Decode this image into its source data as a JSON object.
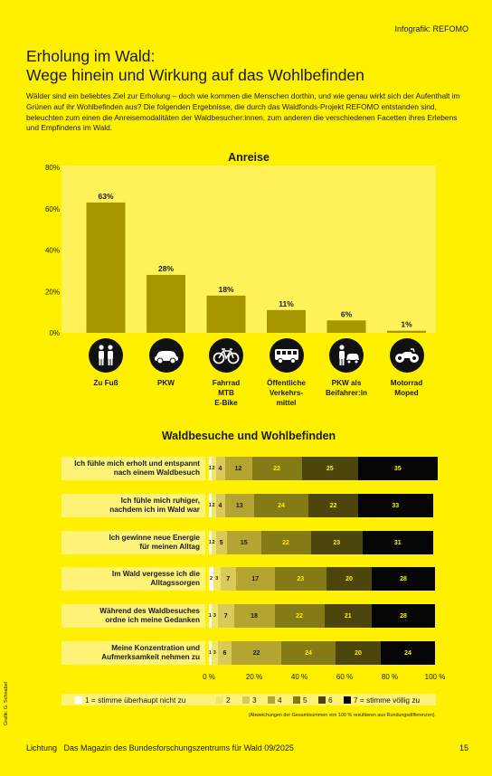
{
  "header": {
    "credit": "Infografik: REFOMO"
  },
  "title_line1": "Erholung im Wald:",
  "title_line2": "Wege hinein und Wirkung auf das Wohlbefinden",
  "intro": "Wälder sind ein beliebtes Ziel zur Erholung – doch wie kommen die Menschen dorthin, und wie genau wirkt sich der Aufenthalt im Grünen auf ihr Wohlbefinden aus? Die folgenden Ergebnisse, die durch das Waldfonds-Projekt REFOMO entstanden sind, beleuchten zum einen die Anreisemodalitäten der Waldbesucher:innen, zum anderen die verschiedenen Facetten ihres Erlebens und Empfindens im Wald.",
  "chart_data": [
    {
      "type": "bar",
      "title": "Anreise",
      "categories": [
        "Zu Fuß",
        "PKW",
        "Fahrrad MTB E-Bike",
        "Öffentliche Verkehrs-mittel",
        "PKW als Beifahrer:in",
        "Motorrad Moped"
      ],
      "category_lines": [
        [
          "Zu Fuß"
        ],
        [
          "PKW"
        ],
        [
          "Fahrrad",
          "MTB",
          "E-Bike"
        ],
        [
          "Öffentliche",
          "Verkehrs-",
          "mittel"
        ],
        [
          "PKW als",
          "Beifahrer:in"
        ],
        [
          "Motorrad",
          "Moped"
        ]
      ],
      "icons": [
        "walking-people-icon",
        "car-icon",
        "bicycle-icon",
        "bus-icon",
        "passenger-car-icon",
        "motorcycle-icon"
      ],
      "values": [
        63,
        28,
        18,
        11,
        6,
        1
      ],
      "value_labels": [
        "63%",
        "28%",
        "18%",
        "11%",
        "6%",
        "1%"
      ],
      "ylim": [
        0,
        80
      ],
      "yticks": [
        0,
        20,
        40,
        60,
        80
      ],
      "ytick_labels": [
        "0%",
        "20%",
        "40%",
        "60%",
        "80%"
      ],
      "bar_color": "#A89600",
      "grid": false
    },
    {
      "type": "bar",
      "orientation": "horizontal-stacked-100",
      "title": "Waldbesuche und Wohlbefinden",
      "categories": [
        "Ich fühle mich erholt und entspannt nach einem Waldbesuch",
        "Ich fühle mich ruhiger, nachdem ich im Wald war",
        "Ich gewinne neue Energie für meinen Alltag",
        "Im Wald vergesse ich die Alltagssorgen",
        "Während des Waldbesuches ordne ich meine Gedanken",
        "Meine Konzentration und Aufmerksamkeit nehmen zu"
      ],
      "category_lines": [
        [
          "Ich fühle mich erholt und entspannt",
          "nach einem Waldbesuch"
        ],
        [
          "Ich fühle mich ruhiger,",
          "nachdem ich im Wald war"
        ],
        [
          "Ich gewinne neue Energie",
          "für meinen Alltag"
        ],
        [
          "Im Wald vergesse ich die",
          "Alltagssorgen"
        ],
        [
          "Während des Waldbesuches",
          "ordne ich meine Gedanken"
        ],
        [
          "Meine Konzentration und",
          "Aufmerksamkeit nehmen zu"
        ]
      ],
      "series": [
        {
          "name": "1 = stimme überhaupt nicht zu",
          "color": "#FFFFFF",
          "values": [
            1,
            1,
            1,
            2,
            1,
            1
          ]
        },
        {
          "name": "2",
          "color": "#F2E56E",
          "values": [
            2,
            2,
            2,
            3,
            3,
            3
          ]
        },
        {
          "name": "3",
          "color": "#D9CA5A",
          "values": [
            4,
            4,
            5,
            7,
            7,
            6
          ]
        },
        {
          "name": "4",
          "color": "#B4A532",
          "values": [
            12,
            13,
            15,
            17,
            18,
            22
          ]
        },
        {
          "name": "5",
          "color": "#847A16",
          "values": [
            22,
            24,
            22,
            23,
            22,
            24
          ]
        },
        {
          "name": "6",
          "color": "#4C460C",
          "values": [
            25,
            22,
            23,
            20,
            21,
            20
          ]
        },
        {
          "name": "7 = stimme völlig zu",
          "color": "#050505",
          "values": [
            35,
            33,
            31,
            28,
            28,
            24
          ]
        }
      ],
      "xlim": [
        0,
        100
      ],
      "xticks": [
        0,
        20,
        40,
        60,
        80,
        100
      ],
      "xtick_labels": [
        "0 %",
        "20 %",
        "40 %",
        "60 %",
        "80 %",
        "100 %"
      ],
      "legend_position": "bottom",
      "note": "(Abweichungen der Gesamtsummen von 100 % resultieren aus Rundungsdifferenzen)."
    }
  ],
  "side_credit": "Grafik: G. Schnabel",
  "footer": {
    "text": "Lichtung   Das Magazin des Bundesforschungszentrums für Wald 09/2025",
    "page": "15"
  }
}
